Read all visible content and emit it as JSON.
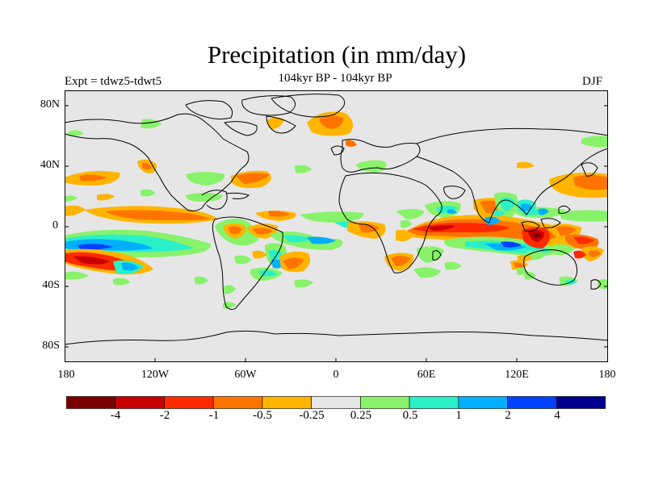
{
  "title": "Precipitation (in mm/day)",
  "subtitle": "104kyr BP - 104kyr BP",
  "experiment": "Expt = tdwz5-tdwt5",
  "season": "DJF",
  "map": {
    "projection": "cylindrical equidistant",
    "background_color": "#e6e6e6",
    "lat_ticks": [
      "80N",
      "40N",
      "0",
      "40S",
      "80S"
    ],
    "lon_ticks": [
      "180",
      "120W",
      "60W",
      "0",
      "60E",
      "120E",
      "180"
    ]
  },
  "colorbar": {
    "colors": [
      "#7a0000",
      "#c80000",
      "#ff2a00",
      "#ff7400",
      "#ffb400",
      "#e6e6e6",
      "#88f26a",
      "#2af0c8",
      "#00b0ff",
      "#0040ff",
      "#000090"
    ],
    "labels": [
      "-4",
      "-2",
      "-1",
      "-0.5",
      "-0.25",
      "0.25",
      "0.5",
      "1",
      "2",
      "4"
    ]
  }
}
